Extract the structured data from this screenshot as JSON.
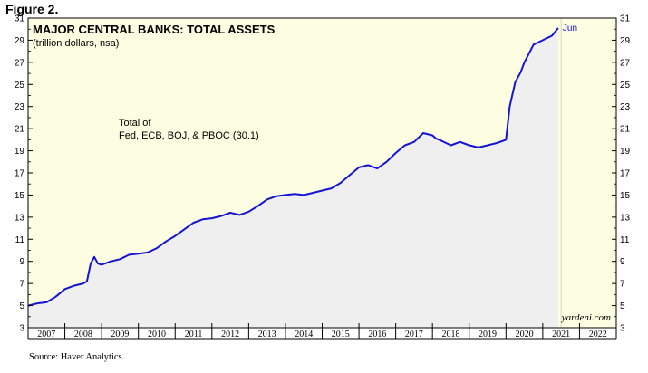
{
  "figure_label": "Figure 2.",
  "source": "Source: Haver Analytics.",
  "chart_data": {
    "type": "area",
    "title": "MAJOR CENTRAL BANKS: TOTAL ASSETS",
    "subtitle": "(trillion dollars, nsa)",
    "annotation_lines": [
      "Total of",
      "Fed, ECB, BOJ, & PBOC (30.1)"
    ],
    "end_label": "Jun",
    "watermark": "yardeni.com",
    "xlabel": "",
    "ylabel": "",
    "ylim": [
      3,
      31
    ],
    "yticks": [
      3,
      5,
      7,
      9,
      11,
      13,
      15,
      17,
      19,
      21,
      23,
      25,
      27,
      29,
      31
    ],
    "xlim": [
      2007.0,
      2023.0
    ],
    "xtick_labels": [
      "2007",
      "2008",
      "2009",
      "2010",
      "2011",
      "2012",
      "2013",
      "2014",
      "2015",
      "2016",
      "2017",
      "2018",
      "2019",
      "2020",
      "2021",
      "2022"
    ],
    "highlight_until": 2021.5,
    "colors": {
      "line": "#1414d2",
      "area_fill": "#efefef",
      "background": "#fdfde2",
      "axis": "#000000"
    },
    "series": [
      {
        "x": [
          2007.0,
          2007.25,
          2007.5,
          2007.75,
          2008.0,
          2008.25,
          2008.5,
          2008.6,
          2008.7,
          2008.8,
          2008.9,
          2009.0,
          2009.25,
          2009.5,
          2009.75,
          2010.0,
          2010.25,
          2010.5,
          2010.75,
          2011.0,
          2011.25,
          2011.5,
          2011.75,
          2012.0,
          2012.25,
          2012.5,
          2012.75,
          2013.0,
          2013.25,
          2013.5,
          2013.75,
          2014.0,
          2014.25,
          2014.5,
          2014.75,
          2015.0,
          2015.25,
          2015.5,
          2015.75,
          2016.0,
          2016.25,
          2016.5,
          2016.75,
          2017.0,
          2017.25,
          2017.5,
          2017.75,
          2018.0,
          2018.1,
          2018.25,
          2018.5,
          2018.75,
          2019.0,
          2019.25,
          2019.5,
          2019.75,
          2020.0,
          2020.1,
          2020.25,
          2020.4,
          2020.5,
          2020.75,
          2021.0,
          2021.25,
          2021.42
        ],
        "values": [
          5.0,
          5.2,
          5.3,
          5.8,
          6.5,
          6.8,
          7.0,
          7.2,
          8.8,
          9.4,
          8.8,
          8.7,
          9.0,
          9.2,
          9.6,
          9.7,
          9.8,
          10.2,
          10.8,
          11.3,
          11.9,
          12.5,
          12.8,
          12.9,
          13.1,
          13.4,
          13.2,
          13.5,
          14.0,
          14.6,
          14.9,
          15.0,
          15.1,
          15.0,
          15.2,
          15.4,
          15.6,
          16.1,
          16.8,
          17.5,
          17.7,
          17.4,
          18.0,
          18.8,
          19.5,
          19.8,
          20.6,
          20.4,
          20.1,
          19.9,
          19.5,
          19.8,
          19.5,
          19.3,
          19.5,
          19.7,
          20.0,
          23.0,
          25.2,
          26.1,
          27.0,
          28.6,
          29.0,
          29.4,
          30.1
        ]
      }
    ]
  }
}
